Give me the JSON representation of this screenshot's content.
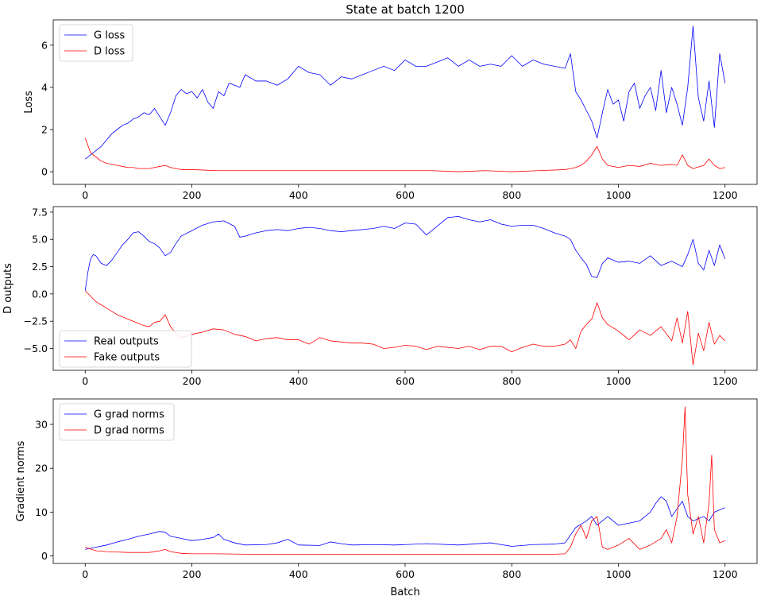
{
  "figure": {
    "title": "State at batch 1200",
    "xlabel": "Batch"
  },
  "colors": {
    "series_a": "#0000ff",
    "series_b": "#ff0000"
  },
  "chart_data": [
    {
      "type": "line",
      "title": "State at batch 1200",
      "ylabel": "Loss",
      "xlim": [
        -60,
        1260
      ],
      "ylim": [
        -0.6,
        7.2
      ],
      "xticks": [
        0,
        200,
        400,
        600,
        800,
        1000,
        1200
      ],
      "yticks": [
        0,
        2,
        4,
        6
      ],
      "legend": "top-left",
      "series": [
        {
          "name": "G loss",
          "color": "#0000ff",
          "x": [
            0,
            10,
            20,
            30,
            40,
            50,
            60,
            70,
            80,
            90,
            100,
            110,
            120,
            130,
            140,
            150,
            160,
            170,
            180,
            190,
            200,
            210,
            220,
            230,
            240,
            250,
            260,
            270,
            280,
            290,
            300,
            320,
            340,
            360,
            380,
            400,
            420,
            440,
            460,
            480,
            500,
            520,
            540,
            560,
            580,
            600,
            620,
            640,
            660,
            680,
            700,
            720,
            740,
            760,
            780,
            800,
            820,
            840,
            860,
            880,
            900,
            910,
            920,
            930,
            940,
            950,
            960,
            970,
            980,
            990,
            1000,
            1010,
            1020,
            1030,
            1040,
            1050,
            1060,
            1070,
            1080,
            1090,
            1100,
            1110,
            1120,
            1130,
            1140,
            1150,
            1160,
            1170,
            1180,
            1190,
            1200
          ],
          "values": [
            0.6,
            0.8,
            1.0,
            1.2,
            1.5,
            1.8,
            2.0,
            2.2,
            2.3,
            2.5,
            2.6,
            2.8,
            2.7,
            3.0,
            2.6,
            2.2,
            2.8,
            3.6,
            3.9,
            3.7,
            3.8,
            3.5,
            3.9,
            3.3,
            3.0,
            3.8,
            3.6,
            4.2,
            4.1,
            4.0,
            4.6,
            4.3,
            4.3,
            4.1,
            4.4,
            5.0,
            4.7,
            4.6,
            4.1,
            4.5,
            4.4,
            4.6,
            4.8,
            5.0,
            4.8,
            5.3,
            5.0,
            5.0,
            5.2,
            5.4,
            5.0,
            5.3,
            5.0,
            5.1,
            5.0,
            5.5,
            5.0,
            5.3,
            5.1,
            5.0,
            4.9,
            5.6,
            3.8,
            3.4,
            2.9,
            2.4,
            1.6,
            2.8,
            3.9,
            3.2,
            3.4,
            2.4,
            3.8,
            4.2,
            3.0,
            3.6,
            4.0,
            2.9,
            4.8,
            2.8,
            4.0,
            3.2,
            2.2,
            4.0,
            6.9,
            3.5,
            2.4,
            4.3,
            2.1,
            5.6,
            4.2
          ]
        },
        {
          "name": "D loss",
          "color": "#ff0000",
          "x": [
            0,
            10,
            20,
            30,
            40,
            50,
            60,
            70,
            80,
            90,
            100,
            110,
            120,
            130,
            140,
            150,
            160,
            180,
            200,
            250,
            300,
            350,
            400,
            450,
            500,
            550,
            600,
            650,
            700,
            750,
            800,
            850,
            900,
            910,
            920,
            930,
            940,
            950,
            960,
            970,
            980,
            1000,
            1020,
            1040,
            1060,
            1080,
            1100,
            1110,
            1120,
            1130,
            1140,
            1160,
            1170,
            1180,
            1190,
            1200
          ],
          "values": [
            1.6,
            0.9,
            0.7,
            0.5,
            0.4,
            0.35,
            0.3,
            0.25,
            0.2,
            0.2,
            0.15,
            0.15,
            0.15,
            0.2,
            0.25,
            0.3,
            0.2,
            0.1,
            0.1,
            0.05,
            0.05,
            0.05,
            0.05,
            0.05,
            0.05,
            0.05,
            0.05,
            0.05,
            0.0,
            0.05,
            0.0,
            0.05,
            0.1,
            0.15,
            0.2,
            0.3,
            0.5,
            0.8,
            1.2,
            0.6,
            0.3,
            0.2,
            0.3,
            0.25,
            0.4,
            0.3,
            0.35,
            0.3,
            0.8,
            0.3,
            0.15,
            0.3,
            0.6,
            0.3,
            0.15,
            0.2
          ]
        }
      ]
    },
    {
      "type": "line",
      "ylabel": "D outputs",
      "xlim": [
        -60,
        1260
      ],
      "ylim": [
        -7.0,
        8.0
      ],
      "xticks": [
        0,
        200,
        400,
        600,
        800,
        1000,
        1200
      ],
      "yticks": [
        -5.0,
        -2.5,
        0.0,
        2.5,
        5.0,
        7.5
      ],
      "legend": "bottom-left",
      "series": [
        {
          "name": "Real outputs",
          "color": "#0000ff",
          "x": [
            0,
            5,
            10,
            15,
            20,
            30,
            40,
            50,
            60,
            70,
            80,
            90,
            100,
            110,
            120,
            130,
            140,
            150,
            160,
            170,
            180,
            200,
            220,
            240,
            260,
            280,
            290,
            300,
            320,
            340,
            360,
            380,
            400,
            420,
            440,
            460,
            480,
            500,
            520,
            540,
            560,
            580,
            600,
            620,
            640,
            660,
            680,
            700,
            720,
            740,
            760,
            780,
            800,
            820,
            840,
            860,
            880,
            900,
            910,
            920,
            930,
            940,
            950,
            960,
            970,
            980,
            1000,
            1020,
            1040,
            1060,
            1080,
            1100,
            1120,
            1130,
            1140,
            1150,
            1160,
            1170,
            1180,
            1190,
            1200
          ],
          "values": [
            0.3,
            2.0,
            3.2,
            3.6,
            3.5,
            2.8,
            2.6,
            3.1,
            3.8,
            4.5,
            5.0,
            5.6,
            5.7,
            5.3,
            4.8,
            4.6,
            4.2,
            3.5,
            3.8,
            4.6,
            5.3,
            5.8,
            6.3,
            6.6,
            6.7,
            6.2,
            5.2,
            5.3,
            5.6,
            5.8,
            5.9,
            5.8,
            6.0,
            6.1,
            6.0,
            5.8,
            5.7,
            5.8,
            5.9,
            6.0,
            6.2,
            6.0,
            6.5,
            6.4,
            5.4,
            6.2,
            7.0,
            7.1,
            6.8,
            6.6,
            6.8,
            6.4,
            6.2,
            6.3,
            6.3,
            6.0,
            5.6,
            5.3,
            5.0,
            4.0,
            3.3,
            2.7,
            1.6,
            1.5,
            2.8,
            3.3,
            2.9,
            3.0,
            2.8,
            3.5,
            2.6,
            3.0,
            2.5,
            3.6,
            5.0,
            2.8,
            2.2,
            4.0,
            2.6,
            4.5,
            3.2
          ]
        },
        {
          "name": "Fake outputs",
          "color": "#ff0000",
          "x": [
            0,
            10,
            20,
            30,
            40,
            50,
            60,
            70,
            80,
            90,
            100,
            110,
            120,
            130,
            140,
            150,
            160,
            170,
            180,
            200,
            220,
            240,
            260,
            280,
            300,
            320,
            340,
            360,
            380,
            400,
            420,
            440,
            460,
            480,
            500,
            520,
            540,
            560,
            580,
            600,
            620,
            640,
            660,
            680,
            700,
            720,
            740,
            760,
            780,
            800,
            820,
            840,
            860,
            880,
            900,
            910,
            920,
            930,
            940,
            950,
            960,
            970,
            980,
            1000,
            1020,
            1040,
            1060,
            1080,
            1100,
            1110,
            1120,
            1130,
            1140,
            1150,
            1160,
            1170,
            1180,
            1190,
            1200
          ],
          "values": [
            0.3,
            -0.2,
            -0.7,
            -1.0,
            -1.3,
            -1.6,
            -1.9,
            -2.1,
            -2.3,
            -2.5,
            -2.7,
            -2.9,
            -3.0,
            -2.6,
            -2.5,
            -1.9,
            -3.0,
            -3.6,
            -4.0,
            -3.7,
            -3.5,
            -3.2,
            -3.3,
            -3.7,
            -3.9,
            -4.3,
            -4.1,
            -4.0,
            -4.2,
            -4.2,
            -4.6,
            -4.0,
            -4.3,
            -4.4,
            -4.5,
            -4.5,
            -4.6,
            -5.0,
            -4.9,
            -4.7,
            -4.8,
            -5.1,
            -4.8,
            -4.9,
            -5.0,
            -4.8,
            -5.1,
            -4.8,
            -4.8,
            -5.3,
            -4.9,
            -4.6,
            -4.8,
            -4.8,
            -4.6,
            -4.2,
            -5.0,
            -3.4,
            -2.8,
            -2.3,
            -0.8,
            -2.2,
            -2.8,
            -3.4,
            -4.2,
            -3.3,
            -3.8,
            -3.0,
            -4.3,
            -2.2,
            -4.5,
            -1.6,
            -6.5,
            -3.6,
            -5.2,
            -2.6,
            -4.6,
            -3.8,
            -4.3
          ]
        }
      ]
    },
    {
      "type": "line",
      "ylabel": "Gradient norms",
      "xlabel": "Batch",
      "xlim": [
        -60,
        1260
      ],
      "ylim": [
        -1.7,
        35.8
      ],
      "xticks": [
        0,
        200,
        400,
        600,
        800,
        1000,
        1200
      ],
      "yticks": [
        0,
        10,
        20,
        30
      ],
      "legend": "top-left",
      "series": [
        {
          "name": "G grad norms",
          "color": "#0000ff",
          "x": [
            0,
            20,
            40,
            60,
            80,
            100,
            120,
            140,
            150,
            160,
            180,
            200,
            220,
            240,
            250,
            260,
            280,
            300,
            340,
            360,
            380,
            400,
            440,
            460,
            480,
            500,
            540,
            580,
            640,
            700,
            760,
            800,
            840,
            880,
            900,
            920,
            940,
            950,
            960,
            970,
            980,
            1000,
            1020,
            1040,
            1060,
            1070,
            1080,
            1090,
            1100,
            1120,
            1130,
            1140,
            1160,
            1170,
            1180,
            1190,
            1200
          ],
          "values": [
            1.5,
            2.0,
            2.5,
            3.2,
            3.8,
            4.5,
            5.0,
            5.6,
            5.4,
            4.5,
            4.0,
            3.5,
            3.8,
            4.2,
            5.0,
            3.8,
            3.0,
            2.5,
            2.6,
            3.0,
            3.8,
            2.5,
            2.4,
            3.2,
            2.8,
            2.5,
            2.6,
            2.5,
            2.8,
            2.5,
            3.0,
            2.2,
            2.6,
            2.7,
            3.0,
            6.5,
            8.0,
            9.0,
            7.0,
            8.0,
            9.0,
            7.0,
            7.5,
            8.0,
            10.0,
            12.0,
            13.5,
            12.5,
            9.0,
            12.5,
            9.0,
            8.0,
            9.0,
            8.0,
            10.0,
            10.5,
            11.0
          ]
        },
        {
          "name": "D grad norms",
          "color": "#ff0000",
          "x": [
            0,
            20,
            40,
            60,
            80,
            100,
            120,
            140,
            150,
            160,
            180,
            200,
            250,
            300,
            350,
            400,
            500,
            600,
            700,
            800,
            880,
            900,
            910,
            920,
            930,
            940,
            950,
            960,
            970,
            980,
            1000,
            1020,
            1040,
            1060,
            1080,
            1090,
            1100,
            1110,
            1120,
            1125,
            1130,
            1140,
            1150,
            1160,
            1170,
            1175,
            1180,
            1190,
            1200
          ],
          "values": [
            2.0,
            1.2,
            1.0,
            0.9,
            0.8,
            0.8,
            0.8,
            1.2,
            1.5,
            1.0,
            0.6,
            0.5,
            0.5,
            0.4,
            0.4,
            0.4,
            0.4,
            0.4,
            0.4,
            0.4,
            0.4,
            0.5,
            2.0,
            5.0,
            7.0,
            4.0,
            8.0,
            9.0,
            2.0,
            1.5,
            2.5,
            4.0,
            1.5,
            2.5,
            4.0,
            6.0,
            3.0,
            9.0,
            22.0,
            34.0,
            14.0,
            5.0,
            9.0,
            3.0,
            12.0,
            23.0,
            6.0,
            3.0,
            3.5
          ]
        }
      ]
    }
  ]
}
